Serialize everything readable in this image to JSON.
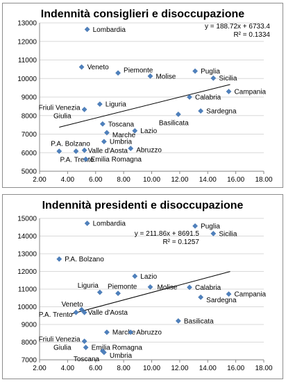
{
  "chart_data": [
    {
      "type": "scatter",
      "title": "Indennità consiglieri e disoccupazione",
      "xlim": [
        2,
        18
      ],
      "ylim": [
        5000,
        13000
      ],
      "x_ticks": [
        2,
        4,
        6,
        8,
        10,
        12,
        14,
        16,
        18
      ],
      "x_tick_labels": [
        "2.00",
        "4.00",
        "6.00",
        "8.00",
        "10.00",
        "12.00",
        "14.00",
        "16.00",
        "18.00"
      ],
      "y_ticks": [
        5000,
        6000,
        7000,
        8000,
        9000,
        10000,
        11000,
        12000,
        13000
      ],
      "y_tick_labels": [
        "5000",
        "6000",
        "7000",
        "8000",
        "9000",
        "10000",
        "11000",
        "12000",
        "13000"
      ],
      "grid": "horizontal",
      "marker_color": "#4f81bd",
      "trendline": {
        "equation": "y = 188.72x + 6733.4",
        "r2": "R² = 0.1334",
        "slope": 188.72,
        "intercept": 6733.4,
        "x_range": [
          3.4,
          15.6
        ]
      },
      "points": [
        {
          "label": "Lombardia",
          "x": 5.4,
          "y": 12650
        },
        {
          "label": "Veneto",
          "x": 5.0,
          "y": 10620
        },
        {
          "label": "Piemonte",
          "x": 7.6,
          "y": 10300
        },
        {
          "label": "Molise",
          "x": 9.9,
          "y": 10130
        },
        {
          "label": "Puglia",
          "x": 13.1,
          "y": 10400
        },
        {
          "label": "Sicilia",
          "x": 14.4,
          "y": 10020
        },
        {
          "label": "Campania",
          "x": 15.5,
          "y": 9300
        },
        {
          "label": "Calabria",
          "x": 12.7,
          "y": 9000
        },
        {
          "label": "Sardegna",
          "x": 13.5,
          "y": 8250
        },
        {
          "label": "Basilicata",
          "x": 11.9,
          "y": 8070
        },
        {
          "label": "Liguria",
          "x": 6.3,
          "y": 8620
        },
        {
          "label": "Friuli Venezia Giulia",
          "x": 5.2,
          "y": 8330
        },
        {
          "label": "Toscana",
          "x": 6.5,
          "y": 7550
        },
        {
          "label": "Marche",
          "x": 6.8,
          "y": 7080
        },
        {
          "label": "Lazio",
          "x": 8.8,
          "y": 7180
        },
        {
          "label": "Umbria",
          "x": 6.6,
          "y": 6600
        },
        {
          "label": "Abruzzo",
          "x": 8.5,
          "y": 6230
        },
        {
          "label": "P.A. Bolzano",
          "x": 3.4,
          "y": 6080
        },
        {
          "label": "Valle d'Aosta",
          "x": 5.2,
          "y": 6130
        },
        {
          "label": "P.A. Trento",
          "x": 4.6,
          "y": 6080
        },
        {
          "label": "Emilia Romagna",
          "x": 5.3,
          "y": 5650
        }
      ]
    },
    {
      "type": "scatter",
      "title": "Indennità presidenti e disoccupazione",
      "xlim": [
        2,
        18
      ],
      "ylim": [
        7000,
        15000
      ],
      "x_ticks": [
        2,
        4,
        6,
        8,
        10,
        12,
        14,
        16,
        18
      ],
      "x_tick_labels": [
        "2.00",
        "4.00",
        "6.00",
        "8.00",
        "10.00",
        "12.00",
        "14.00",
        "16.00",
        "18.00"
      ],
      "y_ticks": [
        7000,
        8000,
        9000,
        10000,
        11000,
        12000,
        13000,
        14000,
        15000
      ],
      "y_tick_labels": [
        "7000",
        "8000",
        "9000",
        "10000",
        "11000",
        "12000",
        "13000",
        "14000",
        "15000"
      ],
      "grid": "horizontal",
      "marker_color": "#4f81bd",
      "trendline": {
        "equation": "y = 211.86x + 8691.5",
        "r2": "R² = 0.1257",
        "slope": 211.86,
        "intercept": 8691.5,
        "x_range": [
          4.3,
          15.6
        ]
      },
      "points": [
        {
          "label": "Lombardia",
          "x": 5.4,
          "y": 14720
        },
        {
          "label": "Puglia",
          "x": 13.1,
          "y": 14570
        },
        {
          "label": "Sicilia",
          "x": 14.4,
          "y": 14140
        },
        {
          "label": "P.A. Bolzano",
          "x": 3.4,
          "y": 12700
        },
        {
          "label": "Lazio",
          "x": 8.8,
          "y": 11730
        },
        {
          "label": "Liguria",
          "x": 6.3,
          "y": 10820
        },
        {
          "label": "Piemonte",
          "x": 7.6,
          "y": 10760
        },
        {
          "label": "Molise",
          "x": 9.9,
          "y": 11120
        },
        {
          "label": "Calabria",
          "x": 12.7,
          "y": 11100
        },
        {
          "label": "Campania",
          "x": 15.5,
          "y": 10720
        },
        {
          "label": "Sardegna",
          "x": 13.5,
          "y": 10540
        },
        {
          "label": "Veneto",
          "x": 5.0,
          "y": 9840
        },
        {
          "label": "P.A. Trento",
          "x": 4.6,
          "y": 9680
        },
        {
          "label": "Valle d'Aosta",
          "x": 5.2,
          "y": 9680
        },
        {
          "label": "Basilicata",
          "x": 11.9,
          "y": 9200
        },
        {
          "label": "Marche",
          "x": 6.8,
          "y": 8560
        },
        {
          "label": "Abruzzo",
          "x": 8.5,
          "y": 8560
        },
        {
          "label": "Friuli Venezia Giulia",
          "x": 5.2,
          "y": 8050
        },
        {
          "label": "Emilia Romagna",
          "x": 5.3,
          "y": 7700
        },
        {
          "label": "Toscana",
          "x": 6.5,
          "y": 7500
        },
        {
          "label": "Umbria",
          "x": 6.6,
          "y": 7420
        }
      ]
    }
  ]
}
